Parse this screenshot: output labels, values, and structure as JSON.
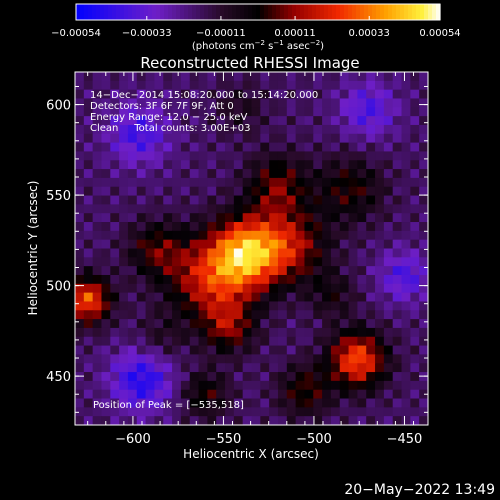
{
  "chart_data": {
    "type": "heatmap",
    "title": "Reconstructed RHESSI Image",
    "xlabel": "Heliocentric X (arcsec)",
    "ylabel": "Heliocentric Y (arcsec)",
    "xlim": [
      -632,
      -437
    ],
    "ylim": [
      423,
      618
    ],
    "x_ticks": [
      -600,
      -550,
      -500,
      -450
    ],
    "x_tick_labels": [
      "−600",
      "−550",
      "−500",
      "−450"
    ],
    "y_ticks": [
      450,
      500,
      550,
      600
    ],
    "y_tick_labels": [
      "450",
      "500",
      "550",
      "600"
    ],
    "colorbar": {
      "range": [
        -0.00054,
        0.00054
      ],
      "ticks": [
        -0.00054,
        -0.00033,
        -0.00011,
        0.00011,
        0.00033,
        0.00054
      ],
      "tick_labels": [
        "−0.00054",
        "−0.00033",
        "−0.00011",
        "0.00011",
        "0.00033",
        "0.00054"
      ],
      "units_prefix": "(photons cm",
      "units_exp1": "−2",
      "units_mid1": " s",
      "units_exp2": "−1",
      "units_mid2": " asec",
      "units_exp3": "−2",
      "units_suffix": ")"
    },
    "annotations": [
      "14−Dec−2014 15:08:20.000 to 15:14:20.000",
      "Detectors: 3F 6F 7F 9F, Att 0",
      "Energy Range: 12.0 − 25.0 keV",
      "Clean     Total counts: 3.00E+03"
    ],
    "peak_label": "Position of Peak = [−535,518]",
    "sources": [
      {
        "x": -537,
        "y": 518,
        "amplitude": 0.00054,
        "sigma": 14
      },
      {
        "x": -558,
        "y": 503,
        "amplitude": 0.00034,
        "sigma": 16
      },
      {
        "x": -512,
        "y": 522,
        "amplitude": 0.00028,
        "sigma": 14
      },
      {
        "x": -625,
        "y": 492,
        "amplitude": 0.00045,
        "sigma": 9
      },
      {
        "x": -476,
        "y": 459,
        "amplitude": 0.00045,
        "sigma": 11
      },
      {
        "x": -587,
        "y": 520,
        "amplitude": 0.00022,
        "sigma": 11
      },
      {
        "x": -547,
        "y": 477,
        "amplitude": 0.00025,
        "sigma": 10
      },
      {
        "x": -520,
        "y": 555,
        "amplitude": 0.00025,
        "sigma": 12
      },
      {
        "x": -480,
        "y": 553,
        "amplitude": 0.0002,
        "sigma": 13
      },
      {
        "x": -560,
        "y": 440,
        "amplitude": 0.0002,
        "sigma": 9
      },
      {
        "x": -505,
        "y": 442,
        "amplitude": 0.00022,
        "sigma": 10
      },
      {
        "x": -585,
        "y": 470,
        "amplitude": 0.0001,
        "sigma": 10
      },
      {
        "x": -490,
        "y": 495,
        "amplitude": 0.00014,
        "sigma": 9
      },
      {
        "x": -597,
        "y": 584,
        "amplitude": -0.00022,
        "sigma": 12
      },
      {
        "x": -470,
        "y": 597,
        "amplitude": -0.0002,
        "sigma": 11
      },
      {
        "x": -595,
        "y": 448,
        "amplitude": -0.00028,
        "sigma": 12
      },
      {
        "x": -450,
        "y": 505,
        "amplitude": -0.0002,
        "sigma": 10
      },
      {
        "x": -540,
        "y": 598,
        "amplitude": 0.0001,
        "sigma": 10
      }
    ]
  },
  "footer": {
    "timestamp": "20−May−2022 13:49"
  }
}
